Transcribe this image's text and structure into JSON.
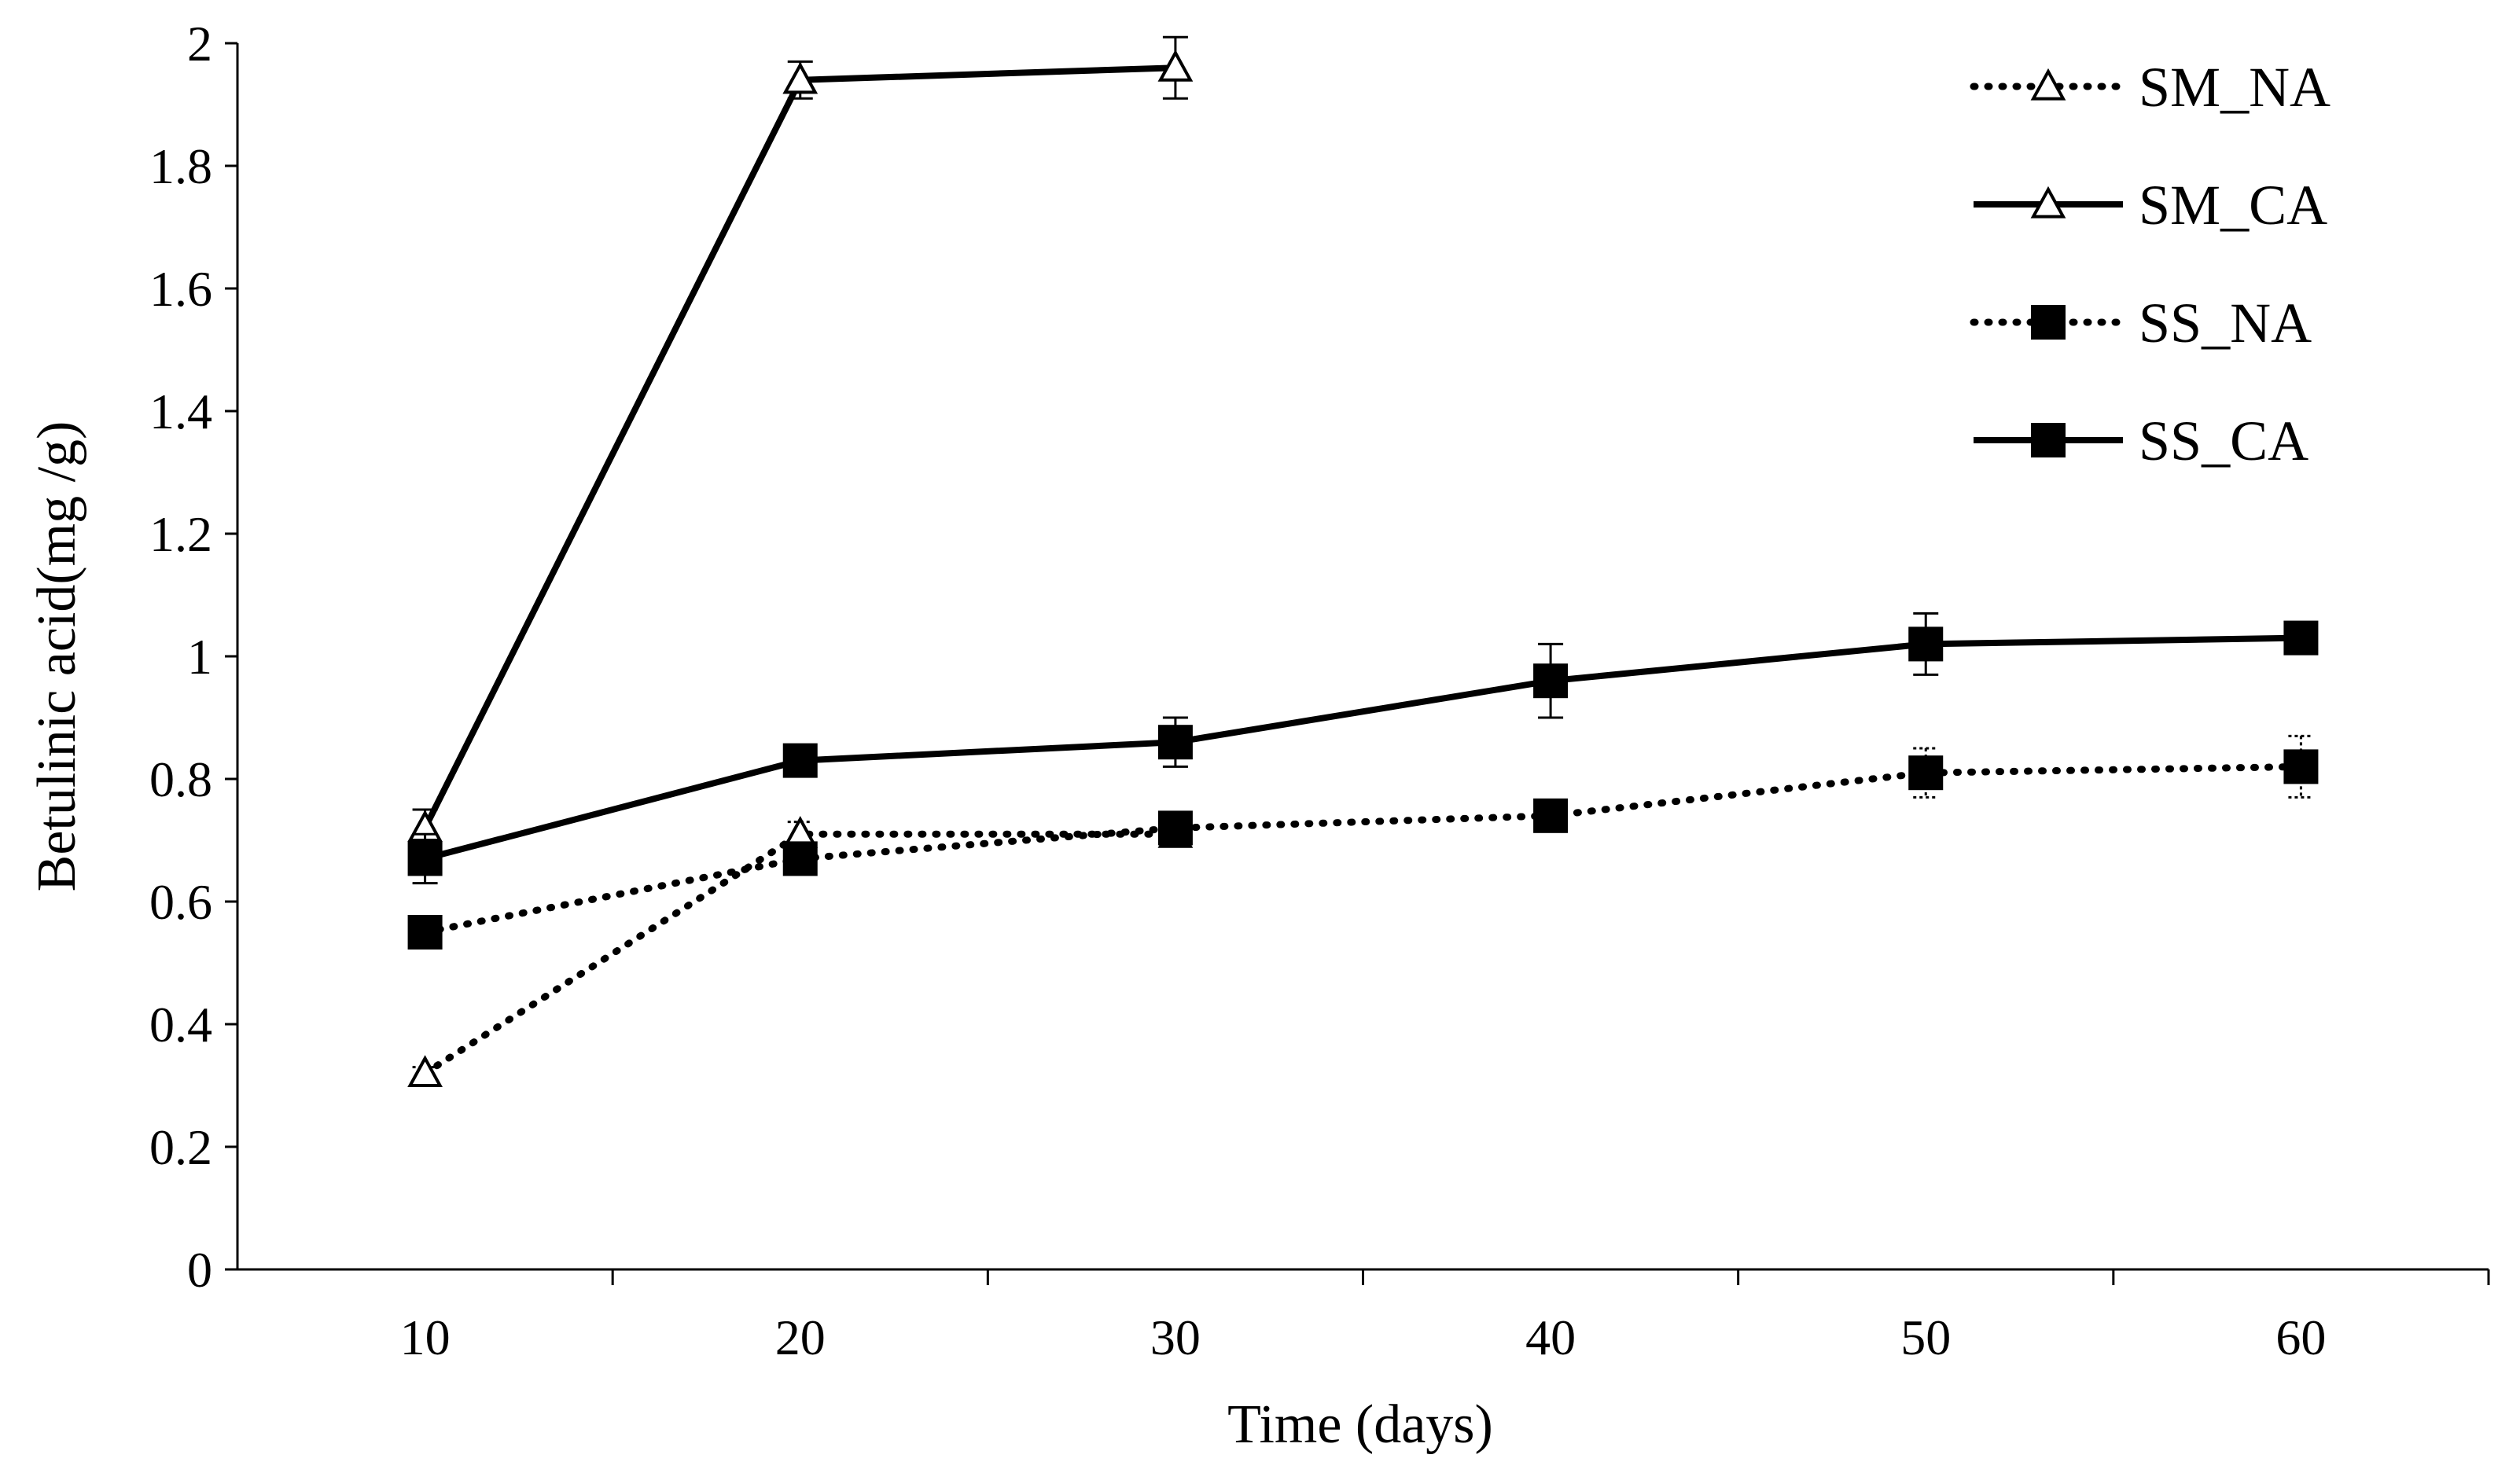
{
  "chart_data": {
    "type": "line",
    "title": "",
    "xlabel": "Time (days)",
    "ylabel": "Betulinic acid(mg /g)",
    "x": [
      10,
      20,
      30,
      40,
      50,
      60
    ],
    "xlim": [
      5,
      65
    ],
    "ylim": [
      0,
      2
    ],
    "y_ticks": [
      0,
      0.2,
      0.4,
      0.6,
      0.8,
      1,
      1.2,
      1.4,
      1.6,
      1.8,
      2
    ],
    "y_tick_labels": [
      "0",
      "0.2",
      "0.4",
      "0.6",
      "0.8",
      "1",
      "1.2",
      "1.4",
      "1.6",
      "1.8",
      "2"
    ],
    "x_ticks": [
      10,
      20,
      30,
      40,
      50,
      60
    ],
    "x_tick_labels": [
      "10",
      "20",
      "30",
      "40",
      "50",
      "60"
    ],
    "grid": false,
    "legend_position": "top-right",
    "series": [
      {
        "name": "SM_NA",
        "line": "dotted",
        "marker": "open-triangle",
        "x": [
          10,
          20,
          30
        ],
        "values": [
          0.32,
          0.71,
          0.71
        ],
        "errors": [
          0.01,
          0.02,
          0.02
        ]
      },
      {
        "name": "SM_CA",
        "line": "solid",
        "marker": "open-triangle",
        "x": [
          10,
          20,
          30
        ],
        "values": [
          0.72,
          1.94,
          1.96
        ],
        "errors": [
          0.03,
          0.03,
          0.05
        ]
      },
      {
        "name": "SS_NA",
        "line": "dotted",
        "marker": "filled-square",
        "x": [
          10,
          20,
          30,
          40,
          50,
          60
        ],
        "values": [
          0.55,
          0.67,
          0.72,
          0.74,
          0.81,
          0.82
        ],
        "errors": [
          0.02,
          0.02,
          0.02,
          0.02,
          0.04,
          0.05
        ]
      },
      {
        "name": "SS_CA",
        "line": "solid",
        "marker": "filled-square",
        "x": [
          10,
          20,
          30,
          40,
          50,
          60
        ],
        "values": [
          0.67,
          0.83,
          0.86,
          0.96,
          1.02,
          1.03
        ],
        "errors": [
          0.04,
          0.02,
          0.04,
          0.06,
          0.05,
          0.02
        ]
      }
    ]
  },
  "colors": {
    "ink": "#000000",
    "background": "#ffffff"
  }
}
